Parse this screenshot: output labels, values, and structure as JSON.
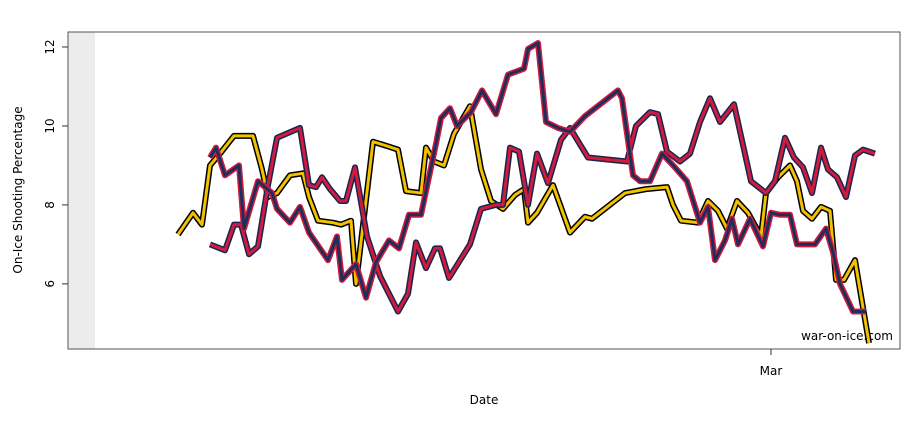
{
  "chart_data": {
    "type": "line",
    "xlabel": "Date",
    "ylabel": "On-Ice Shooting Percentage",
    "annotation": "war-on-ice.com",
    "xlim": [
      0,
      832
    ],
    "xticks": [
      {
        "value": 703,
        "label": "Mar"
      }
    ],
    "ylim": [
      4.35,
      12.38
    ],
    "yticks": [
      6,
      8,
      10,
      12
    ],
    "series": [
      {
        "color": "#f2c200",
        "outline_color": "#000000",
        "x": [
          110,
          125,
          134,
          142,
          152,
          166,
          185,
          194,
          200,
          209,
          222,
          235,
          241,
          250,
          265,
          273,
          283,
          288,
          305,
          318,
          330,
          338,
          353,
          358,
          366,
          376,
          386,
          402,
          413,
          423,
          435,
          447,
          456,
          460,
          469,
          485,
          502,
          517,
          524,
          557,
          578,
          599,
          605,
          613,
          630,
          640,
          650,
          659,
          669,
          680,
          693,
          698,
          710,
          722,
          729,
          735,
          744,
          753,
          762,
          768,
          776,
          787,
          801
        ],
        "values": [
          7.25,
          7.8,
          7.5,
          9.0,
          9.3,
          9.75,
          9.75,
          8.9,
          8.2,
          8.3,
          8.75,
          8.8,
          8.2,
          7.6,
          7.55,
          7.5,
          7.6,
          6.0,
          9.6,
          9.5,
          9.4,
          8.35,
          8.3,
          9.45,
          9.1,
          9.0,
          9.8,
          10.5,
          8.9,
          8.1,
          7.9,
          8.25,
          8.4,
          7.55,
          7.8,
          8.5,
          7.3,
          7.7,
          7.65,
          8.3,
          8.4,
          8.45,
          8.0,
          7.6,
          7.55,
          8.1,
          7.85,
          7.4,
          8.1,
          7.8,
          7.2,
          8.3,
          8.7,
          9.0,
          8.6,
          7.85,
          7.65,
          7.95,
          7.85,
          6.1,
          6.1,
          6.6,
          4.5
        ]
      },
      {
        "color": "#d01c3c",
        "outline_color": "#1a2450",
        "x": [
          142,
          157,
          166,
          173,
          181,
          190,
          200,
          209,
          232,
          241,
          248,
          254,
          262,
          272,
          278,
          287,
          299,
          312,
          330,
          340,
          348,
          358,
          367,
          372,
          381,
          402,
          413,
          428,
          435,
          442,
          451,
          460,
          469,
          480,
          493,
          502,
          520,
          559,
          568,
          582,
          590,
          599,
          612,
          622,
          632,
          642,
          652,
          666,
          683,
          698,
          707,
          717,
          726,
          735,
          744,
          753,
          760,
          769,
          778,
          787,
          795,
          807
        ],
        "values": [
          7.0,
          6.85,
          7.5,
          7.5,
          6.75,
          6.95,
          8.5,
          9.7,
          9.95,
          8.5,
          8.45,
          8.7,
          8.4,
          8.1,
          8.1,
          8.95,
          7.2,
          6.2,
          5.3,
          5.75,
          7.05,
          6.4,
          6.9,
          6.9,
          6.15,
          7.0,
          7.9,
          8.0,
          8.0,
          9.45,
          9.35,
          8.0,
          9.3,
          8.55,
          9.65,
          9.95,
          9.2,
          9.1,
          10.0,
          10.35,
          10.3,
          9.35,
          9.1,
          9.3,
          10.1,
          10.7,
          10.1,
          10.55,
          8.6,
          8.3,
          8.6,
          9.7,
          9.2,
          8.95,
          8.3,
          9.45,
          8.9,
          8.7,
          8.2,
          9.25,
          9.4,
          9.3
        ]
      },
      {
        "color": "#1f2d5c",
        "outline_color": "#d01c3c",
        "x": [
          142,
          148,
          157,
          171,
          176,
          190,
          204,
          209,
          222,
          232,
          241,
          260,
          269,
          274,
          288,
          298,
          308,
          321,
          331,
          341,
          353,
          368,
          373,
          382,
          389,
          403,
          414,
          428,
          440,
          456,
          460,
          470,
          478,
          490,
          502,
          517,
          550,
          554,
          565,
          572,
          582,
          594,
          607,
          619,
          632,
          640,
          647,
          657,
          664,
          670,
          682,
          695,
          703,
          712,
          722,
          729,
          747,
          758,
          765,
          772,
          785,
          798
        ],
        "values": [
          9.2,
          9.45,
          8.75,
          9.0,
          7.4,
          8.6,
          8.3,
          7.9,
          7.55,
          7.95,
          7.3,
          6.6,
          7.2,
          6.1,
          6.5,
          5.65,
          6.55,
          7.1,
          6.9,
          7.75,
          7.75,
          9.55,
          10.2,
          10.45,
          10.0,
          10.35,
          10.9,
          10.3,
          11.3,
          11.45,
          11.95,
          12.1,
          10.1,
          9.95,
          9.85,
          10.25,
          10.9,
          10.7,
          8.75,
          8.6,
          8.6,
          9.3,
          8.95,
          8.6,
          7.55,
          7.95,
          6.6,
          7.1,
          7.65,
          7.0,
          7.65,
          6.95,
          7.8,
          7.75,
          7.75,
          7.0,
          7.0,
          7.4,
          6.8,
          6.0,
          5.3,
          5.3
        ]
      }
    ]
  }
}
